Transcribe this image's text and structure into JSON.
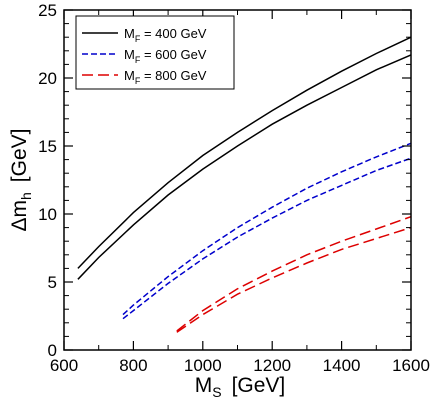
{
  "chart_data": {
    "type": "line",
    "xlabel": {
      "main": "M",
      "sub": "S",
      "unit": "[GeV]"
    },
    "ylabel": {
      "main": "Δm",
      "sub": "h",
      "unit": "[GeV]"
    },
    "xlim": [
      600,
      1600
    ],
    "ylim": [
      0,
      25
    ],
    "xticks": [
      600,
      800,
      1000,
      1200,
      1400,
      1600
    ],
    "yticks": [
      0,
      5,
      10,
      15,
      20,
      25
    ],
    "grid": false,
    "legend": "top-left",
    "series": [
      {
        "name": "400 GeV",
        "legend_main": "M",
        "legend_sub": "F",
        "legend_rest": " = 400 GeV",
        "color": "#000000",
        "dash": "solid",
        "curves": [
          [
            [
              640,
              6.0
            ],
            [
              700,
              7.6
            ],
            [
              800,
              10.1
            ],
            [
              900,
              12.3
            ],
            [
              1000,
              14.3
            ],
            [
              1100,
              16.0
            ],
            [
              1200,
              17.6
            ],
            [
              1300,
              19.1
            ],
            [
              1400,
              20.5
            ],
            [
              1500,
              21.8
            ],
            [
              1600,
              23.0
            ]
          ],
          [
            [
              640,
              5.2
            ],
            [
              700,
              6.8
            ],
            [
              800,
              9.2
            ],
            [
              900,
              11.4
            ],
            [
              1000,
              13.3
            ],
            [
              1100,
              15.0
            ],
            [
              1200,
              16.6
            ],
            [
              1300,
              18.0
            ],
            [
              1400,
              19.3
            ],
            [
              1500,
              20.6
            ],
            [
              1600,
              21.7
            ]
          ]
        ]
      },
      {
        "name": "600 GeV",
        "legend_main": "M",
        "legend_sub": "F",
        "legend_rest": " = 600 GeV",
        "color": "#0000cc",
        "dash": "short",
        "curves": [
          [
            [
              770,
              2.6
            ],
            [
              800,
              3.3
            ],
            [
              900,
              5.4
            ],
            [
              1000,
              7.3
            ],
            [
              1100,
              9.0
            ],
            [
              1200,
              10.5
            ],
            [
              1300,
              11.9
            ],
            [
              1400,
              13.1
            ],
            [
              1500,
              14.2
            ],
            [
              1600,
              15.2
            ]
          ],
          [
            [
              770,
              2.3
            ],
            [
              800,
              2.9
            ],
            [
              900,
              4.9
            ],
            [
              1000,
              6.7
            ],
            [
              1100,
              8.3
            ],
            [
              1200,
              9.7
            ],
            [
              1300,
              11.0
            ],
            [
              1400,
              12.1
            ],
            [
              1500,
              13.2
            ],
            [
              1600,
              14.1
            ]
          ]
        ]
      },
      {
        "name": "800 GeV",
        "legend_main": "M",
        "legend_sub": "F",
        "legend_rest": " = 800 GeV",
        "color": "#dd0000",
        "dash": "long",
        "curves": [
          [
            [
              925,
              1.4
            ],
            [
              1000,
              2.9
            ],
            [
              1100,
              4.5
            ],
            [
              1200,
              5.8
            ],
            [
              1300,
              7.0
            ],
            [
              1400,
              8.0
            ],
            [
              1500,
              8.9
            ],
            [
              1600,
              9.8
            ]
          ],
          [
            [
              925,
              1.3
            ],
            [
              1000,
              2.6
            ],
            [
              1100,
              4.1
            ],
            [
              1200,
              5.3
            ],
            [
              1300,
              6.4
            ],
            [
              1400,
              7.4
            ],
            [
              1500,
              8.2
            ],
            [
              1600,
              9.0
            ]
          ]
        ]
      }
    ]
  }
}
